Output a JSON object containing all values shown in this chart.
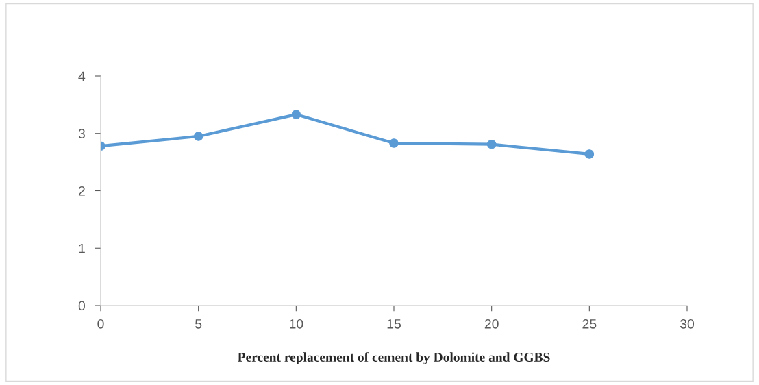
{
  "chart_data": {
    "type": "line",
    "xlabel": "Percent replacement of cement by Dolomite and GGBS",
    "x": [
      0,
      5,
      10,
      15,
      20,
      25
    ],
    "series": [
      {
        "color": "#5b9bd5",
        "values": [
          2.78,
          2.95,
          3.33,
          2.83,
          2.81,
          2.64
        ]
      }
    ],
    "xlim": [
      0,
      30
    ],
    "xticks": [
      0,
      5,
      10,
      15,
      20,
      25,
      30
    ],
    "ylim": [
      0,
      4
    ],
    "yticks": [
      0,
      1,
      2,
      3,
      4
    ],
    "grid": false,
    "legend": false,
    "marker": "circle",
    "line_style": "solid"
  }
}
